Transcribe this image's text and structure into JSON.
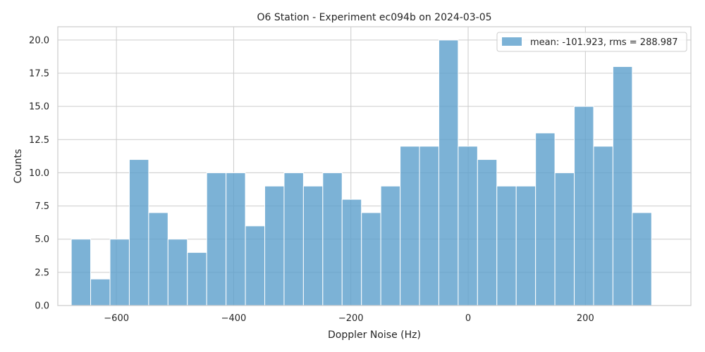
{
  "chart_data": {
    "type": "bar",
    "title": "O6 Station - Experiment ec094b on 2024-03-05",
    "xlabel": "Doppler Noise (Hz)",
    "ylabel": "Counts",
    "xlim": [
      -700,
      380
    ],
    "ylim": [
      0,
      21
    ],
    "xticks": [
      -600,
      -400,
      -200,
      0,
      200
    ],
    "xtick_labels": [
      "−600",
      "−400",
      "−200",
      "0",
      "200"
    ],
    "yticks": [
      0,
      2.5,
      5,
      7.5,
      10,
      12.5,
      15,
      17.5,
      20
    ],
    "ytick_labels": [
      "0.0",
      "2.5",
      "5.0",
      "7.5",
      "10.0",
      "12.5",
      "15.0",
      "17.5",
      "20.0"
    ],
    "grid": true,
    "legend_position": "top-right",
    "bar_color": "#5b9fcc",
    "series": [
      {
        "name": "mean: -101.923, rms = 288.987",
        "bin_edges": [
          -677,
          -644,
          -611,
          -578,
          -545,
          -512,
          -479,
          -446,
          -413,
          -380,
          -347,
          -314,
          -281,
          -248,
          -215,
          -182,
          -149,
          -116,
          -83,
          -50,
          -17,
          16,
          49,
          82,
          115,
          148,
          181,
          214,
          247,
          280,
          313
        ],
        "values": [
          5,
          2,
          5,
          11,
          7,
          5,
          4,
          10,
          10,
          6,
          9,
          10,
          9,
          10,
          8,
          7,
          9,
          12,
          12,
          20,
          12,
          11,
          9,
          9,
          13,
          10,
          15,
          12,
          18,
          7
        ]
      }
    ]
  }
}
